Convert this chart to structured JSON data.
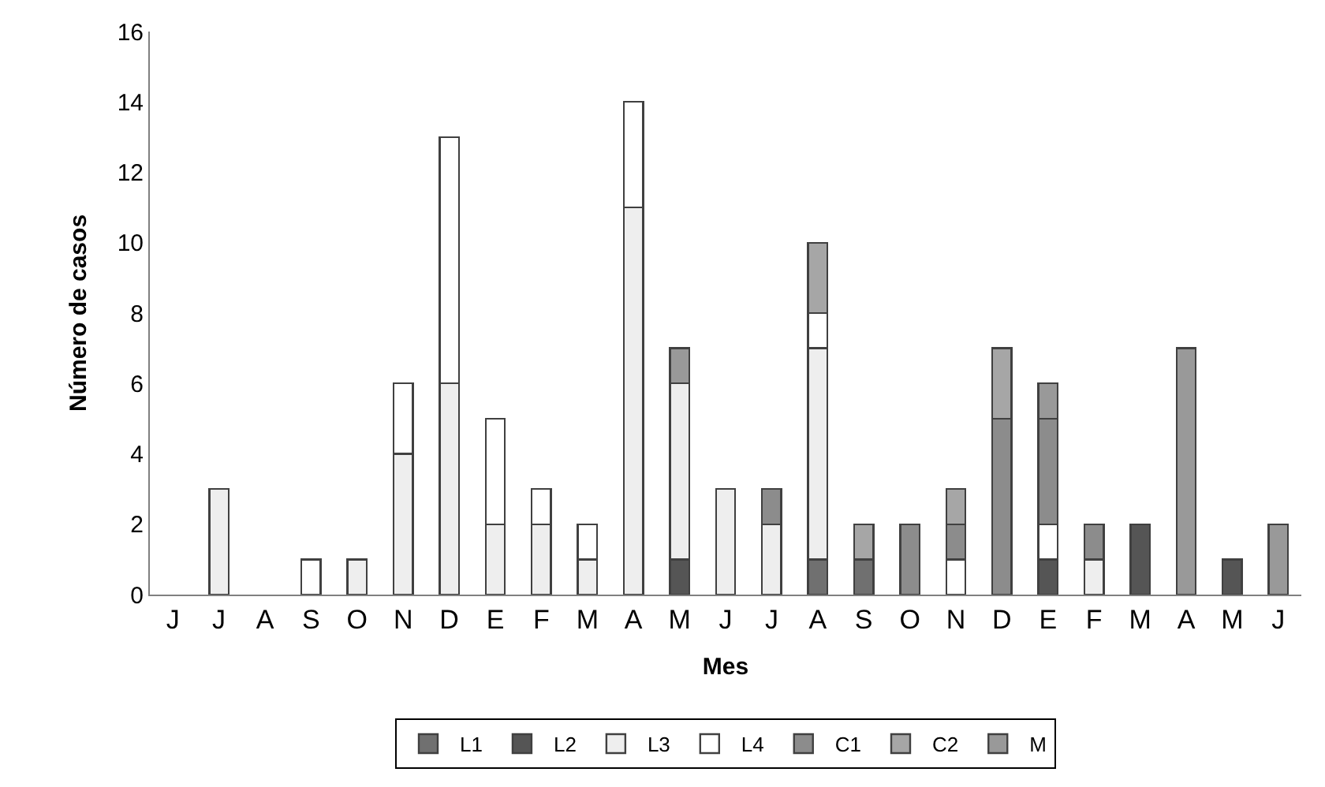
{
  "chart_data": {
    "type": "bar",
    "stacked": true,
    "xlabel": "Mes",
    "ylabel": "Número de casos",
    "categories": [
      "J",
      "J",
      "A",
      "S",
      "O",
      "N",
      "D",
      "E",
      "F",
      "M",
      "A",
      "M",
      "J",
      "J",
      "A",
      "S",
      "O",
      "N",
      "D",
      "E",
      "F",
      "M",
      "A",
      "M",
      "J"
    ],
    "series": [
      {
        "name": "L1",
        "color": "#707070",
        "values": [
          null,
          null,
          null,
          null,
          null,
          null,
          null,
          null,
          null,
          null,
          null,
          null,
          null,
          null,
          1,
          1,
          null,
          null,
          null,
          null,
          null,
          null,
          null,
          null,
          null
        ]
      },
      {
        "name": "L2",
        "color": "#555555",
        "values": [
          null,
          null,
          null,
          null,
          null,
          null,
          null,
          null,
          null,
          null,
          null,
          1,
          null,
          null,
          null,
          null,
          null,
          null,
          null,
          1,
          null,
          2,
          null,
          1,
          null
        ]
      },
      {
        "name": "L3",
        "color": "#eeeeee",
        "values": [
          null,
          3,
          null,
          null,
          1,
          4,
          6,
          2,
          2,
          1,
          11,
          5,
          3,
          2,
          6,
          null,
          null,
          null,
          null,
          null,
          1,
          null,
          null,
          null,
          null
        ]
      },
      {
        "name": "L4",
        "color": "#ffffff",
        "values": [
          null,
          null,
          null,
          1,
          null,
          2,
          7,
          3,
          1,
          1,
          3,
          null,
          null,
          null,
          1,
          null,
          null,
          1,
          null,
          1,
          null,
          null,
          null,
          null,
          null
        ]
      },
      {
        "name": "C1",
        "color": "#8c8c8c",
        "values": [
          null,
          null,
          null,
          null,
          null,
          null,
          null,
          null,
          null,
          null,
          null,
          null,
          null,
          1,
          null,
          null,
          2,
          1,
          5,
          3,
          1,
          null,
          null,
          null,
          null
        ]
      },
      {
        "name": "C2",
        "color": "#a6a6a6",
        "values": [
          null,
          null,
          null,
          null,
          null,
          null,
          null,
          null,
          null,
          null,
          null,
          null,
          null,
          null,
          2,
          1,
          null,
          1,
          2,
          null,
          null,
          null,
          null,
          null,
          null
        ]
      },
      {
        "name": "M",
        "color": "#999999",
        "values": [
          null,
          null,
          null,
          null,
          null,
          null,
          null,
          null,
          null,
          null,
          null,
          1,
          null,
          null,
          null,
          null,
          null,
          null,
          null,
          1,
          null,
          null,
          7,
          null,
          2
        ]
      }
    ],
    "ylim": [
      0,
      16
    ],
    "yticks": [
      0,
      2,
      4,
      6,
      8,
      10,
      12,
      14,
      16
    ],
    "legend": "bottom"
  }
}
